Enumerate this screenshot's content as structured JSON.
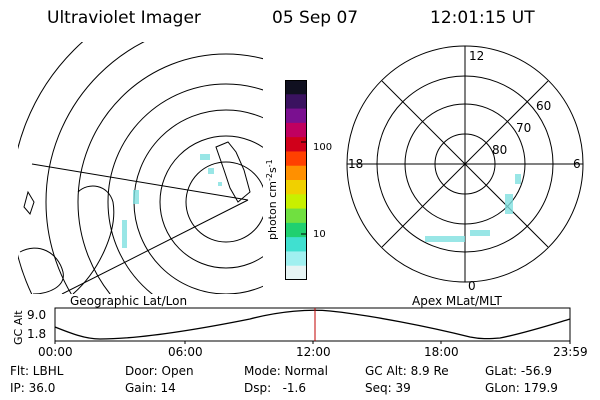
{
  "header": {
    "title": "Ultraviolet Imager",
    "date": "05 Sep 07",
    "time": "12:01:15 UT"
  },
  "colorbar": {
    "unit_label": "photon cm",
    "unit_exp1": "-2",
    "unit_s": "s",
    "unit_exp2": "-1",
    "tick_high": "100",
    "tick_low": "10",
    "colors": [
      "#101020",
      "#3a1260",
      "#7a1090",
      "#c00060",
      "#d0001a",
      "#ff4000",
      "#ff9000",
      "#f0d000",
      "#c8f000",
      "#70e040",
      "#20d070",
      "#40e0d0",
      "#a0f0f0",
      "#e6f4f4"
    ]
  },
  "geo_panel": {
    "label": "Geographic Lat/Lon"
  },
  "polar_panel": {
    "label": "Apex MLat/MLT",
    "mlt_top": "12",
    "mlt_left": "18",
    "mlt_right": "6",
    "mlt_bottom": "0",
    "lat_60": "60",
    "lat_70": "70",
    "lat_80": "80"
  },
  "orbit_plot": {
    "ylabel": "GC Alt",
    "y_high": "9.0",
    "y_low": "1.8",
    "x_ticks": [
      "00:00",
      "06:00",
      "12:00",
      "18:00",
      "23:59"
    ],
    "current_time_marker_color": "#c00000"
  },
  "info": {
    "flt": "Flt: LBHL",
    "ip": "IP: 36.0",
    "door": "Door: Open",
    "gain": "Gain: 14",
    "mode": "Mode: Normal",
    "dsp": "Dsp:   -1.6",
    "gcalt": "GC Alt: 8.9 Re",
    "seq": "Seq: 39",
    "glat": "GLat: -56.9",
    "glon": "GLon: 179.9"
  }
}
